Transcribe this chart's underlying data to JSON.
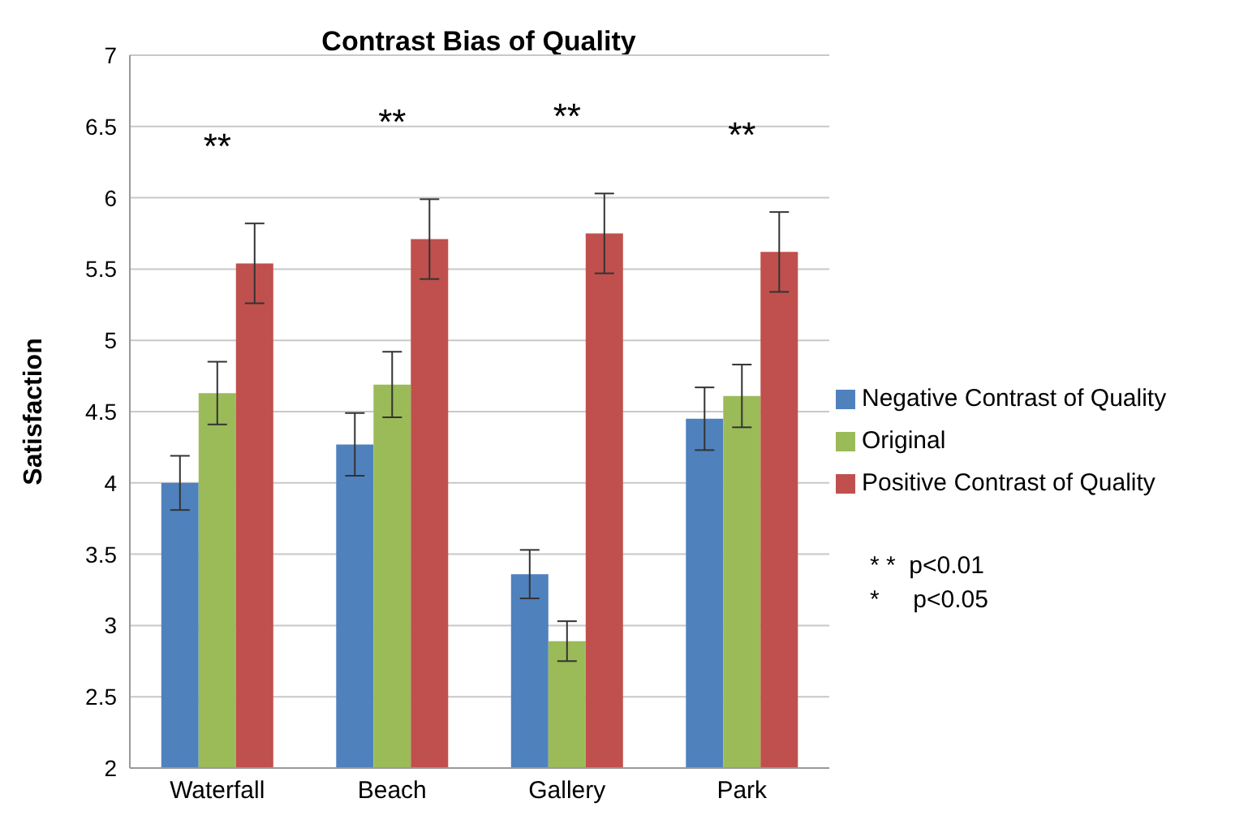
{
  "chart_data": {
    "type": "bar",
    "title": "Contrast Bias of Quality",
    "ylabel": "Satisfaction",
    "categories": [
      "Waterfall",
      "Beach",
      "Gallery",
      "Park"
    ],
    "series": [
      {
        "name": "Negative Contrast of Quality",
        "color": "#4f81bd",
        "values": [
          4.0,
          4.27,
          3.36,
          4.45
        ],
        "errors": [
          0.19,
          0.22,
          0.17,
          0.22
        ]
      },
      {
        "name": "Original",
        "color": "#9bbb59",
        "values": [
          4.63,
          4.69,
          2.89,
          4.61
        ],
        "errors": [
          0.22,
          0.23,
          0.14,
          0.22
        ]
      },
      {
        "name": "Positive Contrast of Quality",
        "color": "#c0504d",
        "values": [
          5.54,
          5.71,
          5.75,
          5.62
        ],
        "errors": [
          0.28,
          0.28,
          0.28,
          0.28
        ]
      }
    ],
    "ylim": [
      2,
      7
    ],
    "yticks": [
      2,
      2.5,
      3,
      3.5,
      4,
      4.5,
      5,
      5.5,
      6,
      6.5,
      7
    ],
    "grid": "y",
    "legend": "right",
    "annotations": [
      "**",
      "**",
      "**",
      "**",
      "* *  p<0.01",
      "*     p<0.05"
    ]
  }
}
